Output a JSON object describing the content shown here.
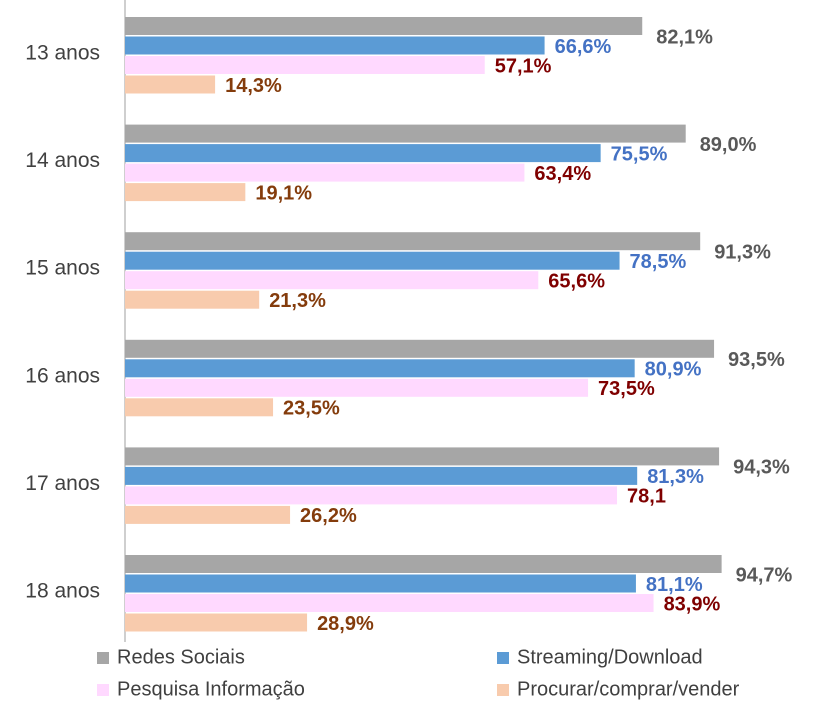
{
  "chart_data": {
    "type": "bar",
    "orientation": "horizontal",
    "categories": [
      "13 anos",
      "14 anos",
      "15 anos",
      "16 anos",
      "17 anos",
      "18 anos"
    ],
    "series": [
      {
        "name": "Redes Sociais",
        "color": "#a6a6a6",
        "label_color": "#595959",
        "values": [
          82.1,
          89.0,
          91.3,
          93.5,
          94.3,
          94.7
        ],
        "value_labels": [
          "82,1%",
          "89,0%",
          "91,3%",
          "93,5%",
          "94,3%",
          "94,7%"
        ]
      },
      {
        "name": "Streaming/Download",
        "color": "#5b9bd5",
        "label_color": "#4472c4",
        "values": [
          66.6,
          75.5,
          78.5,
          80.9,
          81.3,
          81.1
        ],
        "value_labels": [
          "66,6%",
          "75,5%",
          "78,5%",
          "80,9%",
          "81,3%",
          "81,1%"
        ]
      },
      {
        "name": "Pesquisa Informação",
        "color": "#ffd9ff",
        "label_color": "#7f0000",
        "values": [
          57.1,
          63.4,
          65.6,
          73.5,
          78.1,
          83.9
        ],
        "value_labels": [
          "57,1%",
          "63,4%",
          "65,6%",
          "73,5%",
          "78,1",
          "83,9%"
        ]
      },
      {
        "name": "Procurar/comprar/vender",
        "color": "#f8cbad",
        "label_color": "#843c0c",
        "values": [
          14.3,
          19.1,
          21.3,
          23.5,
          26.2,
          28.9
        ],
        "value_labels": [
          "14,3%",
          "19,1%",
          "21,3%",
          "23,5%",
          "26,2%",
          "28,9%"
        ]
      }
    ]
  }
}
